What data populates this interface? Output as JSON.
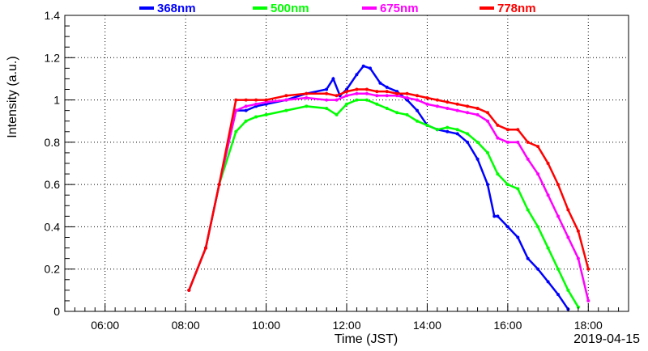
{
  "chart_data": {
    "type": "scatter",
    "title": "",
    "xlabel": "Time (JST)",
    "ylabel": "Intensity (a.u.)",
    "date_label": "2019-04-15",
    "xlim": [
      "05:00",
      "19:00"
    ],
    "ylim": [
      0,
      1.4
    ],
    "x_ticks": [
      "06:00",
      "08:00",
      "10:00",
      "12:00",
      "14:00",
      "16:00",
      "18:00"
    ],
    "y_ticks": [
      "0",
      "0.2",
      "0.4",
      "0.6",
      "0.8",
      "1",
      "1.2",
      "1.4"
    ],
    "grid": true,
    "legend_position": "top",
    "series": [
      {
        "name": "368nm",
        "color": "#0000ff",
        "x": [
          "08:05",
          "08:30",
          "08:50",
          "09:15",
          "09:30",
          "09:45",
          "10:00",
          "10:30",
          "11:00",
          "11:30",
          "11:40",
          "11:50",
          "12:00",
          "12:15",
          "12:25",
          "12:35",
          "12:50",
          "13:00",
          "13:15",
          "13:30",
          "13:45",
          "14:00",
          "14:15",
          "14:30",
          "14:45",
          "15:00",
          "15:15",
          "15:30",
          "15:40",
          "15:45",
          "16:00",
          "16:15",
          "16:30",
          "16:45",
          "17:00",
          "17:15",
          "17:30"
        ],
        "y": [
          0.1,
          0.3,
          0.6,
          0.95,
          0.95,
          0.97,
          0.98,
          1.0,
          1.03,
          1.05,
          1.1,
          1.02,
          1.05,
          1.12,
          1.16,
          1.15,
          1.08,
          1.06,
          1.04,
          1.0,
          0.95,
          0.88,
          0.86,
          0.85,
          0.84,
          0.8,
          0.72,
          0.6,
          0.45,
          0.45,
          0.4,
          0.35,
          0.25,
          0.2,
          0.14,
          0.08,
          0.01
        ]
      },
      {
        "name": "500nm",
        "color": "#00ff00",
        "x": [
          "08:05",
          "08:30",
          "08:50",
          "09:15",
          "09:30",
          "09:45",
          "10:00",
          "10:30",
          "11:00",
          "11:30",
          "11:45",
          "12:00",
          "12:15",
          "12:30",
          "12:45",
          "13:00",
          "13:15",
          "13:30",
          "13:45",
          "14:00",
          "14:15",
          "14:30",
          "14:45",
          "15:00",
          "15:15",
          "15:30",
          "15:45",
          "16:00",
          "16:15",
          "16:30",
          "16:45",
          "17:00",
          "17:15",
          "17:30",
          "17:45"
        ],
        "y": [
          0.1,
          0.3,
          0.6,
          0.85,
          0.9,
          0.92,
          0.93,
          0.95,
          0.97,
          0.96,
          0.93,
          0.98,
          1.0,
          1.0,
          0.98,
          0.96,
          0.94,
          0.93,
          0.9,
          0.88,
          0.86,
          0.87,
          0.86,
          0.84,
          0.8,
          0.75,
          0.65,
          0.6,
          0.58,
          0.48,
          0.4,
          0.3,
          0.2,
          0.1,
          0.02
        ]
      },
      {
        "name": "675nm",
        "color": "#ff00ff",
        "x": [
          "08:05",
          "08:30",
          "08:50",
          "09:15",
          "09:30",
          "09:45",
          "10:00",
          "10:30",
          "11:00",
          "11:30",
          "11:45",
          "12:00",
          "12:15",
          "12:30",
          "12:45",
          "13:00",
          "13:15",
          "13:30",
          "13:45",
          "14:00",
          "14:15",
          "14:30",
          "14:45",
          "15:00",
          "15:15",
          "15:30",
          "15:45",
          "16:00",
          "16:15",
          "16:30",
          "16:45",
          "17:00",
          "17:15",
          "17:30",
          "17:45",
          "18:00"
        ],
        "y": [
          0.1,
          0.3,
          0.6,
          0.95,
          0.97,
          0.98,
          0.99,
          1.0,
          1.01,
          1.0,
          1.0,
          1.02,
          1.03,
          1.03,
          1.02,
          1.02,
          1.02,
          1.01,
          1.0,
          0.98,
          0.97,
          0.96,
          0.95,
          0.94,
          0.93,
          0.9,
          0.82,
          0.8,
          0.8,
          0.72,
          0.65,
          0.55,
          0.45,
          0.35,
          0.25,
          0.05
        ]
      },
      {
        "name": "778nm",
        "color": "#ff0000",
        "x": [
          "08:05",
          "08:30",
          "08:50",
          "09:15",
          "09:30",
          "09:45",
          "10:00",
          "10:30",
          "11:00",
          "11:30",
          "11:45",
          "12:00",
          "12:15",
          "12:30",
          "12:45",
          "13:00",
          "13:15",
          "13:30",
          "13:45",
          "14:00",
          "14:15",
          "14:30",
          "14:45",
          "15:00",
          "15:15",
          "15:30",
          "15:45",
          "16:00",
          "16:15",
          "16:30",
          "16:45",
          "17:00",
          "17:15",
          "17:30",
          "17:45",
          "18:00"
        ],
        "y": [
          0.1,
          0.3,
          0.6,
          1.0,
          1.0,
          1.0,
          1.0,
          1.02,
          1.03,
          1.03,
          1.02,
          1.04,
          1.05,
          1.05,
          1.04,
          1.04,
          1.03,
          1.03,
          1.02,
          1.01,
          1.0,
          0.99,
          0.98,
          0.97,
          0.96,
          0.94,
          0.88,
          0.86,
          0.86,
          0.8,
          0.78,
          0.7,
          0.6,
          0.48,
          0.38,
          0.2
        ]
      }
    ]
  }
}
